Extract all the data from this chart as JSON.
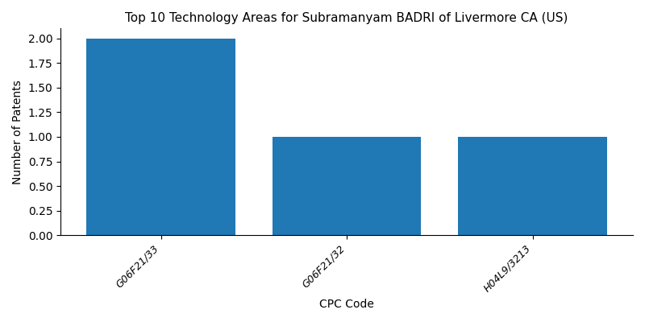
{
  "title": "Top 10 Technology Areas for Subramanyam BADRI of Livermore CA (US)",
  "xlabel": "CPC Code",
  "ylabel": "Number of Patents",
  "categories": [
    "G06F21/33",
    "G06F21/32",
    "H04L9/3213"
  ],
  "values": [
    2,
    1,
    1
  ],
  "bar_color": "#2078b4",
  "bar_width": 0.8,
  "ylim": [
    0,
    2.1
  ],
  "yticks": [
    0.0,
    0.25,
    0.5,
    0.75,
    1.0,
    1.25,
    1.5,
    1.75,
    2.0
  ],
  "figsize": [
    8.0,
    4.0
  ],
  "dpi": 100,
  "title_fontsize": 11,
  "xlabel_fontsize": 10,
  "ylabel_fontsize": 10,
  "tick_rotation": 45,
  "tick_fontsize": 9
}
